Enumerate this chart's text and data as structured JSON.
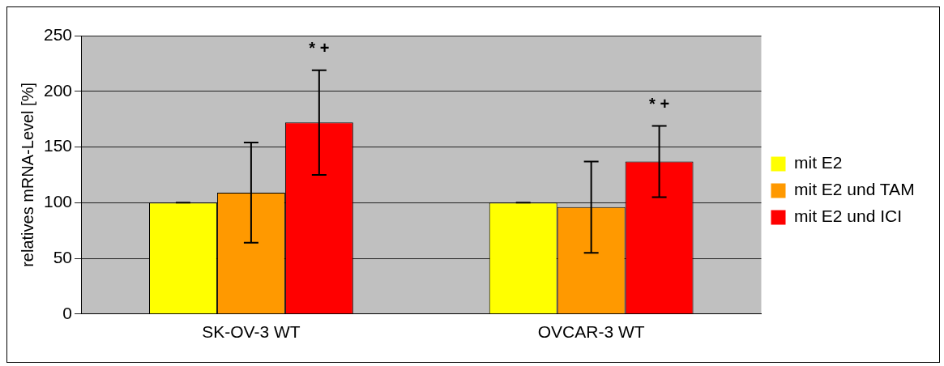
{
  "chart_data": {
    "type": "bar",
    "ylabel": "relatives mRNA-Level [%]",
    "categories": [
      "SK-OV-3 WT",
      "OVCAR-3 WT"
    ],
    "series": [
      {
        "name": "mit E2",
        "color": "#ffff00",
        "values": [
          100,
          100
        ],
        "errors": [
          0,
          0
        ]
      },
      {
        "name": "mit E2 und TAM",
        "color": "#ff9900",
        "values": [
          109,
          96
        ],
        "errors": [
          45,
          41
        ]
      },
      {
        "name": "mit E2 und ICI",
        "color": "#ff0000",
        "values": [
          172,
          137
        ],
        "errors": [
          47,
          32
        ]
      }
    ],
    "annotations": [
      "* +",
      "* +"
    ],
    "ylim": [
      0,
      250
    ],
    "yticks": [
      0,
      50,
      100,
      150,
      200,
      250
    ],
    "grid": "y",
    "legend": "right"
  }
}
